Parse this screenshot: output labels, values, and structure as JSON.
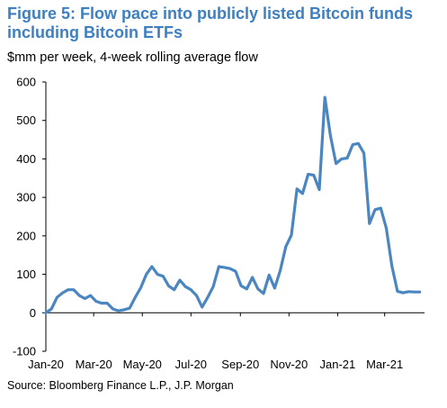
{
  "header": {
    "title": "Figure 5: Flow pace into publicly listed Bitcoin funds including Bitcoin ETFs",
    "subtitle": "$mm per week, 4-week rolling average flow"
  },
  "footer": {
    "source": "Source: Bloomberg Finance L.P., J.P. Morgan"
  },
  "colors": {
    "title": "#3d7fc0",
    "line": "#4b86c0",
    "axis": "#000000"
  },
  "chart_data": {
    "type": "line",
    "title": "Figure 5: Flow pace into publicly listed Bitcoin funds including Bitcoin ETFs",
    "subtitle": "$mm per week, 4-week rolling average flow",
    "xlabel": "",
    "ylabel": "",
    "ylim": [
      -100,
      600
    ],
    "yticks": [
      -100,
      0,
      100,
      200,
      300,
      400,
      500,
      600
    ],
    "xlim": [
      "2020-01-01",
      "2021-04-20"
    ],
    "xticks": [
      {
        "date": "2020-01-01",
        "label": "Jan-20"
      },
      {
        "date": "2020-03-01",
        "label": "Mar-20"
      },
      {
        "date": "2020-05-01",
        "label": "May-20"
      },
      {
        "date": "2020-07-01",
        "label": "Jul-20"
      },
      {
        "date": "2020-09-01",
        "label": "Sep-20"
      },
      {
        "date": "2020-11-01",
        "label": "Nov-20"
      },
      {
        "date": "2021-01-01",
        "label": "Jan-21"
      },
      {
        "date": "2021-03-01",
        "label": "Mar-21"
      }
    ],
    "grid": false,
    "legend": "none",
    "series": [
      {
        "x": [
          "2020-01-01",
          "2020-01-08",
          "2020-01-15",
          "2020-01-22",
          "2020-01-29",
          "2020-02-05",
          "2020-02-12",
          "2020-02-19",
          "2020-02-26",
          "2020-03-04",
          "2020-03-11",
          "2020-03-18",
          "2020-03-25",
          "2020-04-01",
          "2020-04-08",
          "2020-04-15",
          "2020-04-22",
          "2020-04-29",
          "2020-05-06",
          "2020-05-13",
          "2020-05-20",
          "2020-05-27",
          "2020-06-03",
          "2020-06-10",
          "2020-06-17",
          "2020-06-24",
          "2020-07-01",
          "2020-07-08",
          "2020-07-15",
          "2020-07-22",
          "2020-07-29",
          "2020-08-05",
          "2020-08-12",
          "2020-08-19",
          "2020-08-26",
          "2020-09-02",
          "2020-09-09",
          "2020-09-16",
          "2020-09-23",
          "2020-09-30",
          "2020-10-07",
          "2020-10-14",
          "2020-10-21",
          "2020-10-28",
          "2020-11-04",
          "2020-11-11",
          "2020-11-18",
          "2020-11-25",
          "2020-12-02",
          "2020-12-09",
          "2020-12-16",
          "2020-12-23",
          "2020-12-30",
          "2021-01-06",
          "2021-01-13",
          "2021-01-20",
          "2021-01-27",
          "2021-02-03",
          "2021-02-10",
          "2021-02-17",
          "2021-02-24",
          "2021-03-03",
          "2021-03-10",
          "2021-03-17",
          "2021-03-24",
          "2021-03-31",
          "2021-04-07",
          "2021-04-14"
        ],
        "values": [
          0,
          10,
          40,
          52,
          60,
          60,
          45,
          37,
          45,
          30,
          25,
          25,
          10,
          5,
          8,
          12,
          40,
          65,
          100,
          120,
          100,
          95,
          70,
          60,
          85,
          68,
          60,
          45,
          15,
          40,
          68,
          120,
          118,
          115,
          108,
          70,
          62,
          92,
          62,
          50,
          98,
          64,
          110,
          172,
          202,
          322,
          310,
          360,
          358,
          320,
          560,
          460,
          388,
          400,
          402,
          437,
          440,
          415,
          232,
          268,
          272,
          220,
          122,
          56,
          52,
          55,
          54,
          54
        ]
      }
    ]
  }
}
